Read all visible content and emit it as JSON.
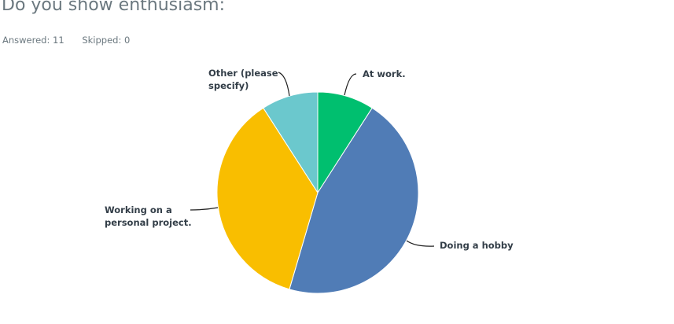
{
  "question": {
    "title": "Do you show enthusiasm:"
  },
  "stats": {
    "answered": "Answered: 11",
    "skipped": "Skipped: 0"
  },
  "chart_data": {
    "type": "pie",
    "title": "Do you show enthusiasm:",
    "start": "12 o'clock, clockwise",
    "categories": [
      "At work.",
      "Doing a hobby",
      "Working on a personal project.",
      "Other (please specify)"
    ],
    "values": [
      1,
      5,
      4,
      1
    ],
    "colors": [
      "#00bf6f",
      "#507cb6",
      "#f9be00",
      "#6bc8cd"
    ],
    "legend": "none (callout labels)",
    "slices": [
      {
        "label": "At work.",
        "label_lines": [
          "At work."
        ],
        "value": 1,
        "color": "#00bf6f"
      },
      {
        "label": "Doing a hobby",
        "label_lines": [
          "Doing a hobby"
        ],
        "value": 5,
        "color": "#507cb6"
      },
      {
        "label": "Working on a personal project.",
        "label_lines": [
          "Working on a",
          "personal project."
        ],
        "value": 4,
        "color": "#f9be00"
      },
      {
        "label": "Other (please specify)",
        "label_lines": [
          "Other (please",
          "specify)"
        ],
        "value": 1,
        "color": "#6bc8cd"
      }
    ]
  }
}
